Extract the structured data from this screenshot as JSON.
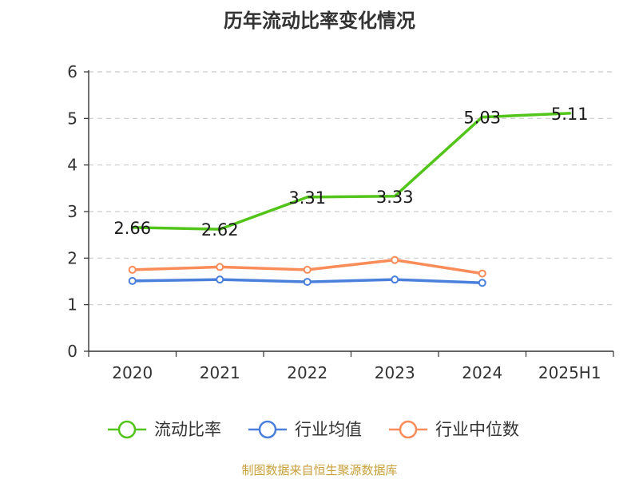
{
  "chart_data": {
    "type": "line",
    "title": "历年流动比率变化情况",
    "categories": [
      "2020",
      "2021",
      "2022",
      "2023",
      "2024",
      "2025H1"
    ],
    "ylim": [
      0,
      6
    ],
    "yticks": [
      "0",
      "1",
      "2",
      "3",
      "4",
      "5",
      "6"
    ],
    "grid": true,
    "legend_position": "bottom",
    "series": [
      {
        "name": "流动比率",
        "color": "#52c41a",
        "values": [
          2.66,
          2.62,
          3.31,
          3.33,
          5.03,
          5.11
        ],
        "labels": [
          "2.66",
          "2.62",
          "3.31",
          "3.33",
          "5.03",
          "5.11"
        ]
      },
      {
        "name": "行业均值",
        "color": "#4a7fdc",
        "values": [
          1.51,
          1.54,
          1.49,
          1.54,
          1.47,
          null
        ]
      },
      {
        "name": "行业中位数",
        "color": "#fa8c5a",
        "values": [
          1.75,
          1.81,
          1.75,
          1.96,
          1.67,
          null
        ]
      }
    ]
  },
  "source_note": "制图数据来自恒生聚源数据库"
}
